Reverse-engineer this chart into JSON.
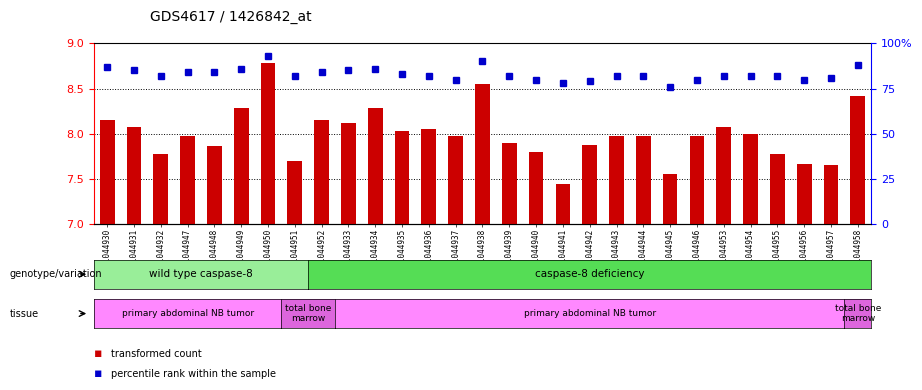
{
  "title": "GDS4617 / 1426842_at",
  "samples": [
    "GSM1044930",
    "GSM1044931",
    "GSM1044932",
    "GSM1044947",
    "GSM1044948",
    "GSM1044949",
    "GSM1044950",
    "GSM1044951",
    "GSM1044952",
    "GSM1044933",
    "GSM1044934",
    "GSM1044935",
    "GSM1044936",
    "GSM1044937",
    "GSM1044938",
    "GSM1044939",
    "GSM1044940",
    "GSM1044941",
    "GSM1044942",
    "GSM1044943",
    "GSM1044944",
    "GSM1044945",
    "GSM1044946",
    "GSM1044953",
    "GSM1044954",
    "GSM1044955",
    "GSM1044956",
    "GSM1044957",
    "GSM1044958"
  ],
  "bar_values": [
    8.15,
    8.08,
    7.78,
    7.98,
    7.87,
    8.28,
    8.78,
    7.7,
    8.15,
    8.12,
    8.28,
    8.03,
    8.05,
    7.97,
    8.55,
    7.9,
    7.8,
    7.44,
    7.88,
    7.97,
    7.98,
    7.55,
    7.97,
    8.08,
    8.0,
    7.78,
    7.67,
    7.65,
    8.42
  ],
  "percentile_values": [
    87,
    85,
    82,
    84,
    84,
    86,
    93,
    82,
    84,
    85,
    86,
    83,
    82,
    80,
    90,
    82,
    80,
    78,
    79,
    82,
    82,
    76,
    80,
    82,
    82,
    82,
    80,
    81,
    88
  ],
  "bar_color": "#cc0000",
  "dot_color": "#0000cc",
  "ylim_left": [
    7.0,
    9.0
  ],
  "ylim_right": [
    0,
    100
  ],
  "yticks_left": [
    7.0,
    7.5,
    8.0,
    8.5,
    9.0
  ],
  "yticks_right": [
    0,
    25,
    50,
    75,
    100
  ],
  "grid_values": [
    7.5,
    8.0,
    8.5
  ],
  "genotype_groups": [
    {
      "label": "wild type caspase-8",
      "start": 0,
      "end": 8,
      "color": "#99ee99"
    },
    {
      "label": "caspase-8 deficiency",
      "start": 8,
      "end": 29,
      "color": "#55dd55"
    }
  ],
  "tissue_groups": [
    {
      "label": "primary abdominal NB tumor",
      "start": 0,
      "end": 7,
      "color": "#ff88ff"
    },
    {
      "label": "total bone\nmarrow",
      "start": 7,
      "end": 9,
      "color": "#dd66dd"
    },
    {
      "label": "primary abdominal NB tumor",
      "start": 9,
      "end": 28,
      "color": "#ff88ff"
    },
    {
      "label": "total bone\nmarrow",
      "start": 28,
      "end": 29,
      "color": "#dd66dd"
    }
  ]
}
